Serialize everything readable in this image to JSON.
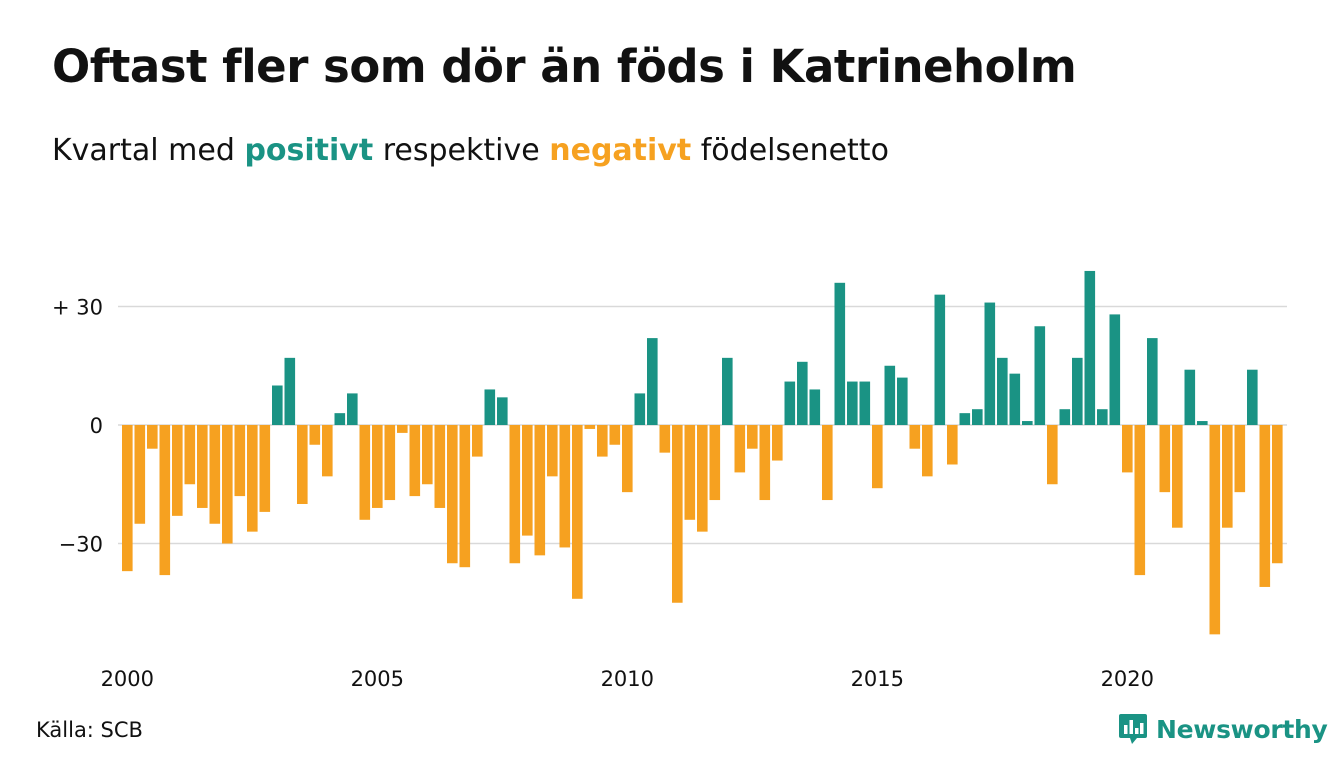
{
  "title": "Oftast fler som dör än föds i Katrineholm",
  "subtitle": {
    "prefix": "Kvartal med",
    "positive": "positivt",
    "middle": "respektive",
    "negative": "negativt",
    "suffix": "födelsenetto"
  },
  "source": "Källa: SCB",
  "brand": "Newsworthy",
  "colors": {
    "positive": "#1a9384",
    "negative": "#f6a120",
    "grid": "#d9d9d9",
    "text": "#111111"
  },
  "chart_data": {
    "type": "bar",
    "x_start": "2000 Q1",
    "x_step": "quarter",
    "y_ticks": [
      30,
      0,
      -30
    ],
    "y_tick_labels": [
      "+ 30",
      "0",
      "−30"
    ],
    "x_ticks": [
      2000,
      2005,
      2010,
      2015,
      2020
    ],
    "x_tick_labels": [
      "2000",
      "2005",
      "2010",
      "2015",
      "2020"
    ],
    "ylim": [
      -53,
      40
    ],
    "grid": true,
    "values": [
      -37,
      -25,
      -6,
      -38,
      -23,
      -15,
      -21,
      -25,
      -30,
      -18,
      -27,
      -22,
      10,
      17,
      -20,
      -5,
      -13,
      3,
      8,
      -24,
      -21,
      -19,
      -2,
      -18,
      -15,
      -21,
      -35,
      -36,
      -8,
      9,
      7,
      -35,
      -28,
      -33,
      -13,
      -31,
      -44,
      -1,
      -8,
      -5,
      -17,
      8,
      22,
      -7,
      -45,
      -24,
      -27,
      -19,
      17,
      -12,
      -6,
      -19,
      -9,
      11,
      16,
      9,
      -19,
      36,
      11,
      11,
      -16,
      15,
      12,
      -6,
      -13,
      33,
      -10,
      3,
      4,
      31,
      17,
      13,
      1,
      25,
      -15,
      4,
      17,
      39,
      4,
      28,
      -12,
      -38,
      22,
      -17,
      -26,
      14,
      1,
      -53,
      -26,
      -17,
      14,
      -41,
      -35
    ]
  }
}
